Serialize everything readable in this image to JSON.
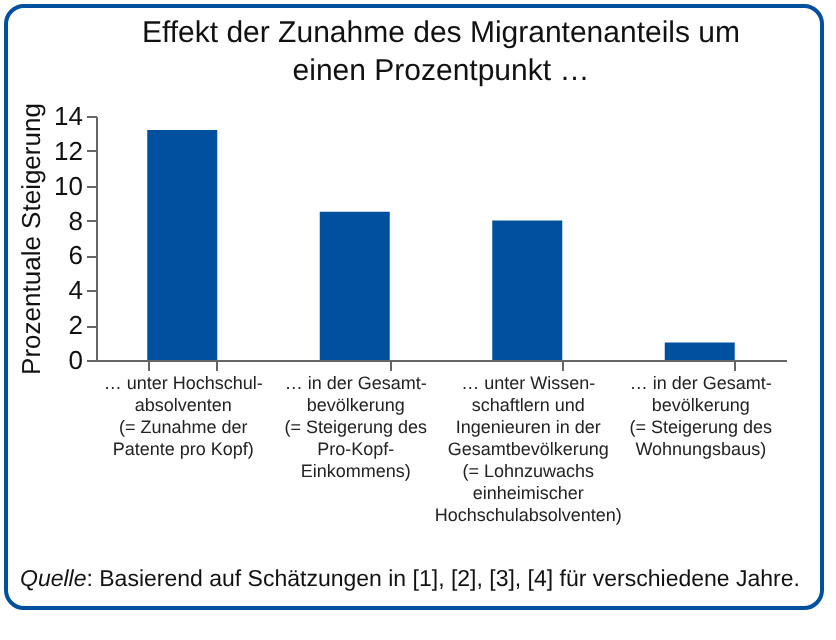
{
  "chart_data": {
    "type": "bar",
    "title": "Effekt der Zunahme des Migrantenanteils um einen Prozentpunkt …",
    "ylabel": "Prozentuale Steigerung",
    "categories": [
      "… unter Hochschul-\nabsolventen\n(= Zunahme der\nPatente pro Kopf)",
      "… in der Gesamt-\nbevölkerung\n(= Steigerung des\nPro-Kopf-\nEinkommens)",
      "… unter Wissen-\nschaftlern und\nIngenieuren in der\nGesamtbevölkerung\n(= Lohnzuwachs\neinheimischer\nHochschulabsolventen)",
      "… in der Gesamt-\nbevölkerung\n(= Steigerung des\nWohnungsbaus)"
    ],
    "values": [
      13.2,
      8.5,
      8.0,
      1.0
    ],
    "color": "#0050a0",
    "ylim": [
      0,
      14
    ],
    "yticks": [
      0,
      2,
      4,
      6,
      8,
      10,
      12,
      14
    ],
    "grid": false,
    "annotations": [
      "Quelle: Basierend auf Schätzungen in [1], [2], [3], [4] für verschiedene Jahre."
    ]
  }
}
